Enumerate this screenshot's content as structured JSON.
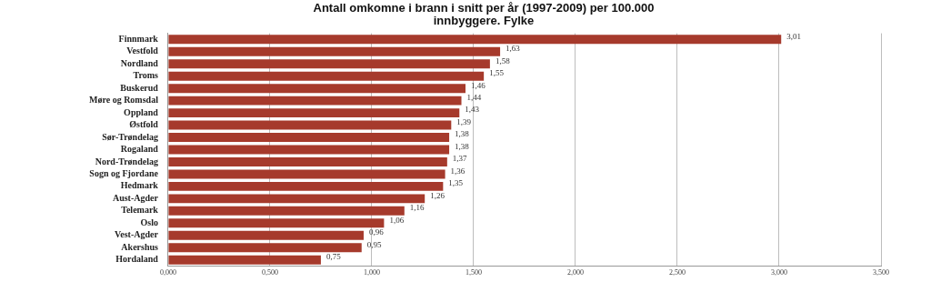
{
  "chart_data": {
    "type": "bar",
    "orientation": "horizontal",
    "title": [
      "Antall omkomne i brann i snitt per år (1997-2009) per 100.000",
      "innbyggere. Fylke"
    ],
    "categories": [
      "Finnmark",
      "Vestfold",
      "Nordland",
      "Troms",
      "Buskerud",
      "Møre og Romsdal",
      "Oppland",
      "Østfold",
      "Sør-Trøndelag",
      "Rogaland",
      "Nord-Trøndelag",
      "Sogn og Fjordane",
      "Hedmark",
      "Aust-Agder",
      "Telemark",
      "Oslo",
      "Vest-Agder",
      "Akershus",
      "Hordaland"
    ],
    "values": [
      3.01,
      1.63,
      1.58,
      1.55,
      1.46,
      1.44,
      1.43,
      1.39,
      1.38,
      1.38,
      1.37,
      1.36,
      1.35,
      1.26,
      1.16,
      1.06,
      0.96,
      0.95,
      0.75
    ],
    "value_labels": [
      "3,01",
      "1,63",
      "1,58",
      "1,55",
      "1,46",
      "1,44",
      "1,43",
      "1,39",
      "1,38",
      "1,38",
      "1,37",
      "1,36",
      "1,35",
      "1,26",
      "1,16",
      "1,06",
      "0,96",
      "0,95",
      "0,75"
    ],
    "data_labels": true,
    "color": "#a63a2c",
    "xlim": [
      0,
      3.5
    ],
    "xticks": [
      {
        "value": 0,
        "label": "0,000"
      },
      {
        "value": 0.5,
        "label": "0,500"
      },
      {
        "value": 1,
        "label": "1,000"
      },
      {
        "value": 1.5,
        "label": "1,500"
      },
      {
        "value": 2,
        "label": "2,000"
      },
      {
        "value": 2.5,
        "label": "2,500"
      },
      {
        "value": 3,
        "label": "3,000"
      },
      {
        "value": 3.5,
        "label": "3,500"
      }
    ],
    "grid": true
  }
}
